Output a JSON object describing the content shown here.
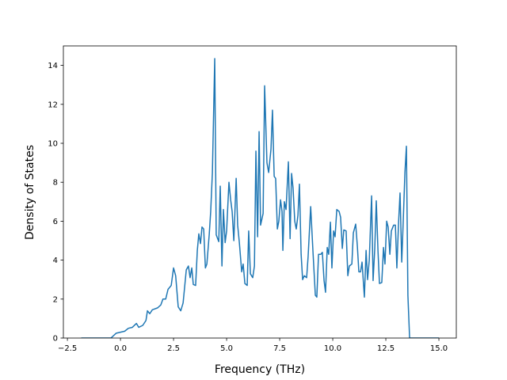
{
  "chart_data": {
    "type": "line",
    "xlabel": "Frequency (THz)",
    "ylabel": "Density of States",
    "series": [
      {
        "color": "#1f77b4",
        "x": [
          -1.85,
          -0.45,
          -0.2,
          0,
          0.2,
          0.37,
          0.56,
          0.75,
          0.86,
          1.05,
          1.2,
          1.27,
          1.38,
          1.5,
          1.75,
          1.9,
          2.0,
          2.13,
          2.24,
          2.39,
          2.5,
          2.6,
          2.72,
          2.84,
          2.95,
          3.1,
          3.2,
          3.28,
          3.36,
          3.43,
          3.54,
          3.62,
          3.69,
          3.77,
          3.84,
          3.92,
          4.0,
          4.07,
          4.18,
          4.25,
          4.33,
          4.44,
          4.51,
          4.63,
          4.7,
          4.78,
          4.85,
          4.93,
          5.0,
          5.11,
          5.19,
          5.26,
          5.34,
          5.45,
          5.52,
          5.6,
          5.71,
          5.78,
          5.86,
          5.97,
          6.04,
          6.12,
          6.23,
          6.31,
          6.38,
          6.46,
          6.53,
          6.6,
          6.72,
          6.79,
          6.9,
          6.98,
          7.09,
          7.16,
          7.24,
          7.31,
          7.39,
          7.46,
          7.54,
          7.61,
          7.65,
          7.72,
          7.8,
          7.91,
          7.99,
          8.06,
          8.13,
          8.21,
          8.28,
          8.36,
          8.43,
          8.51,
          8.58,
          8.66,
          8.77,
          8.84,
          8.96,
          9.07,
          9.18,
          9.25,
          9.33,
          9.44,
          9.51,
          9.59,
          9.66,
          9.74,
          9.81,
          9.89,
          9.96,
          10.04,
          10.11,
          10.19,
          10.3,
          10.37,
          10.45,
          10.52,
          10.63,
          10.71,
          10.78,
          10.9,
          10.97,
          11.08,
          11.16,
          11.23,
          11.31,
          11.38,
          11.49,
          11.57,
          11.64,
          11.72,
          11.83,
          11.9,
          11.98,
          12.05,
          12.13,
          12.2,
          12.31,
          12.39,
          12.46,
          12.54,
          12.61,
          12.69,
          12.76,
          12.87,
          12.95,
          13.02,
          13.1,
          13.17,
          13.25,
          13.32,
          13.4,
          13.47,
          13.54,
          13.62,
          15.0
        ],
        "values": [
          0,
          0,
          0.25,
          0.3,
          0.35,
          0.5,
          0.55,
          0.75,
          0.55,
          0.65,
          0.9,
          1.4,
          1.25,
          1.45,
          1.55,
          1.7,
          2.0,
          2.0,
          2.5,
          2.7,
          3.6,
          3.2,
          1.6,
          1.4,
          1.8,
          3.5,
          3.7,
          3.1,
          3.6,
          2.75,
          2.7,
          4.5,
          5.35,
          4.85,
          5.7,
          5.6,
          3.6,
          3.8,
          5.3,
          6.5,
          8.5,
          14.35,
          5.3,
          4.95,
          7.8,
          3.7,
          6.6,
          4.9,
          5.5,
          8.0,
          7.1,
          6.5,
          5.0,
          8.2,
          5.8,
          4.9,
          3.4,
          3.8,
          2.8,
          2.7,
          5.5,
          3.3,
          3.1,
          3.7,
          9.6,
          5.2,
          10.6,
          5.8,
          6.4,
          12.95,
          9.0,
          8.5,
          9.7,
          11.7,
          8.3,
          8.2,
          5.6,
          6.0,
          7.1,
          6.5,
          4.5,
          7.0,
          6.6,
          9.05,
          5.1,
          8.45,
          7.7,
          6.0,
          5.6,
          6.3,
          7.9,
          4.3,
          3.0,
          3.2,
          3.1,
          4.2,
          6.75,
          4.4,
          2.2,
          2.1,
          4.3,
          4.3,
          4.4,
          2.95,
          2.35,
          4.65,
          4.3,
          5.95,
          3.6,
          5.5,
          5.2,
          6.6,
          6.5,
          6.2,
          4.6,
          5.55,
          5.5,
          3.2,
          3.7,
          3.8,
          5.4,
          5.85,
          4.7,
          3.4,
          3.4,
          3.9,
          2.1,
          4.5,
          3.0,
          4.0,
          7.3,
          2.95,
          4.6,
          7.05,
          4.5,
          2.8,
          2.85,
          4.65,
          3.8,
          6.0,
          5.7,
          4.3,
          5.5,
          5.8,
          5.8,
          3.6,
          5.9,
          7.45,
          3.9,
          6.0,
          8.5,
          9.85,
          2.2,
          0,
          0
        ]
      }
    ],
    "xlim": [
      -2.69,
      15.82
    ],
    "xticks": [
      {
        "value": -2.5,
        "label": "−2.5"
      },
      {
        "value": 0,
        "label": "0.0"
      },
      {
        "value": 2.5,
        "label": "2.5"
      },
      {
        "value": 5,
        "label": "5.0"
      },
      {
        "value": 7.5,
        "label": "7.5"
      },
      {
        "value": 10,
        "label": "10.0"
      },
      {
        "value": 12.5,
        "label": "12.5"
      },
      {
        "value": 15,
        "label": "15.0"
      }
    ],
    "ylim": [
      0,
      15
    ],
    "yticks": [
      0,
      2,
      4,
      6,
      8,
      10,
      12,
      14
    ],
    "grid": false
  }
}
